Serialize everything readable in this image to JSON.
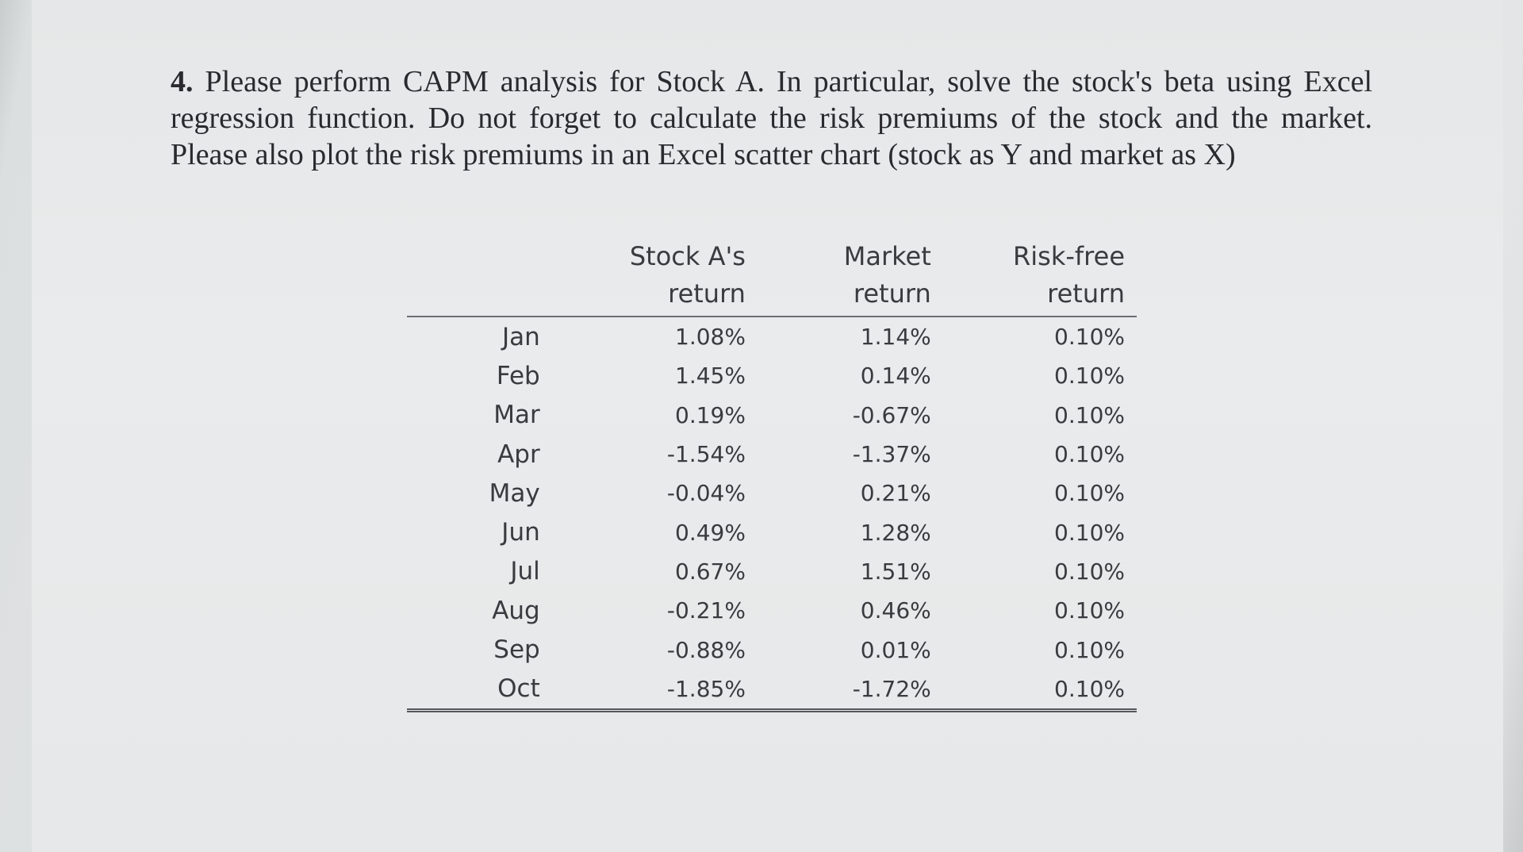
{
  "question": {
    "number": "4.",
    "lines": [
      "Please perform CAPM analysis for Stock A. In particular, solve the stock's beta using Excel",
      "regression function. Do not forget to calculate the risk premiums of the stock and the market.",
      "Please also plot the risk premiums in an Excel scatter chart (stock as Y and market as X)"
    ]
  },
  "table": {
    "headers": [
      {
        "line1": "",
        "line2": ""
      },
      {
        "line1": "Stock A's",
        "line2": "return"
      },
      {
        "line1": "Market",
        "line2": "return"
      },
      {
        "line1": "Risk-free",
        "line2": "return"
      }
    ],
    "rows": [
      {
        "month": "Jan",
        "stock": "1.08%",
        "market": "1.14%",
        "riskfree": "0.10%"
      },
      {
        "month": "Feb",
        "stock": "1.45%",
        "market": "0.14%",
        "riskfree": "0.10%"
      },
      {
        "month": "Mar",
        "stock": "0.19%",
        "market": "-0.67%",
        "riskfree": "0.10%"
      },
      {
        "month": "Apr",
        "stock": "-1.54%",
        "market": "-1.37%",
        "riskfree": "0.10%"
      },
      {
        "month": "May",
        "stock": "-0.04%",
        "market": "0.21%",
        "riskfree": "0.10%"
      },
      {
        "month": "Jun",
        "stock": "0.49%",
        "market": "1.28%",
        "riskfree": "0.10%"
      },
      {
        "month": "Jul",
        "stock": "0.67%",
        "market": "1.51%",
        "riskfree": "0.10%"
      },
      {
        "month": "Aug",
        "stock": "-0.21%",
        "market": "0.46%",
        "riskfree": "0.10%"
      },
      {
        "month": "Sep",
        "stock": "-0.88%",
        "market": "0.01%",
        "riskfree": "0.10%"
      },
      {
        "month": "Oct",
        "stock": "-1.85%",
        "market": "-1.72%",
        "riskfree": "0.10%"
      }
    ]
  }
}
